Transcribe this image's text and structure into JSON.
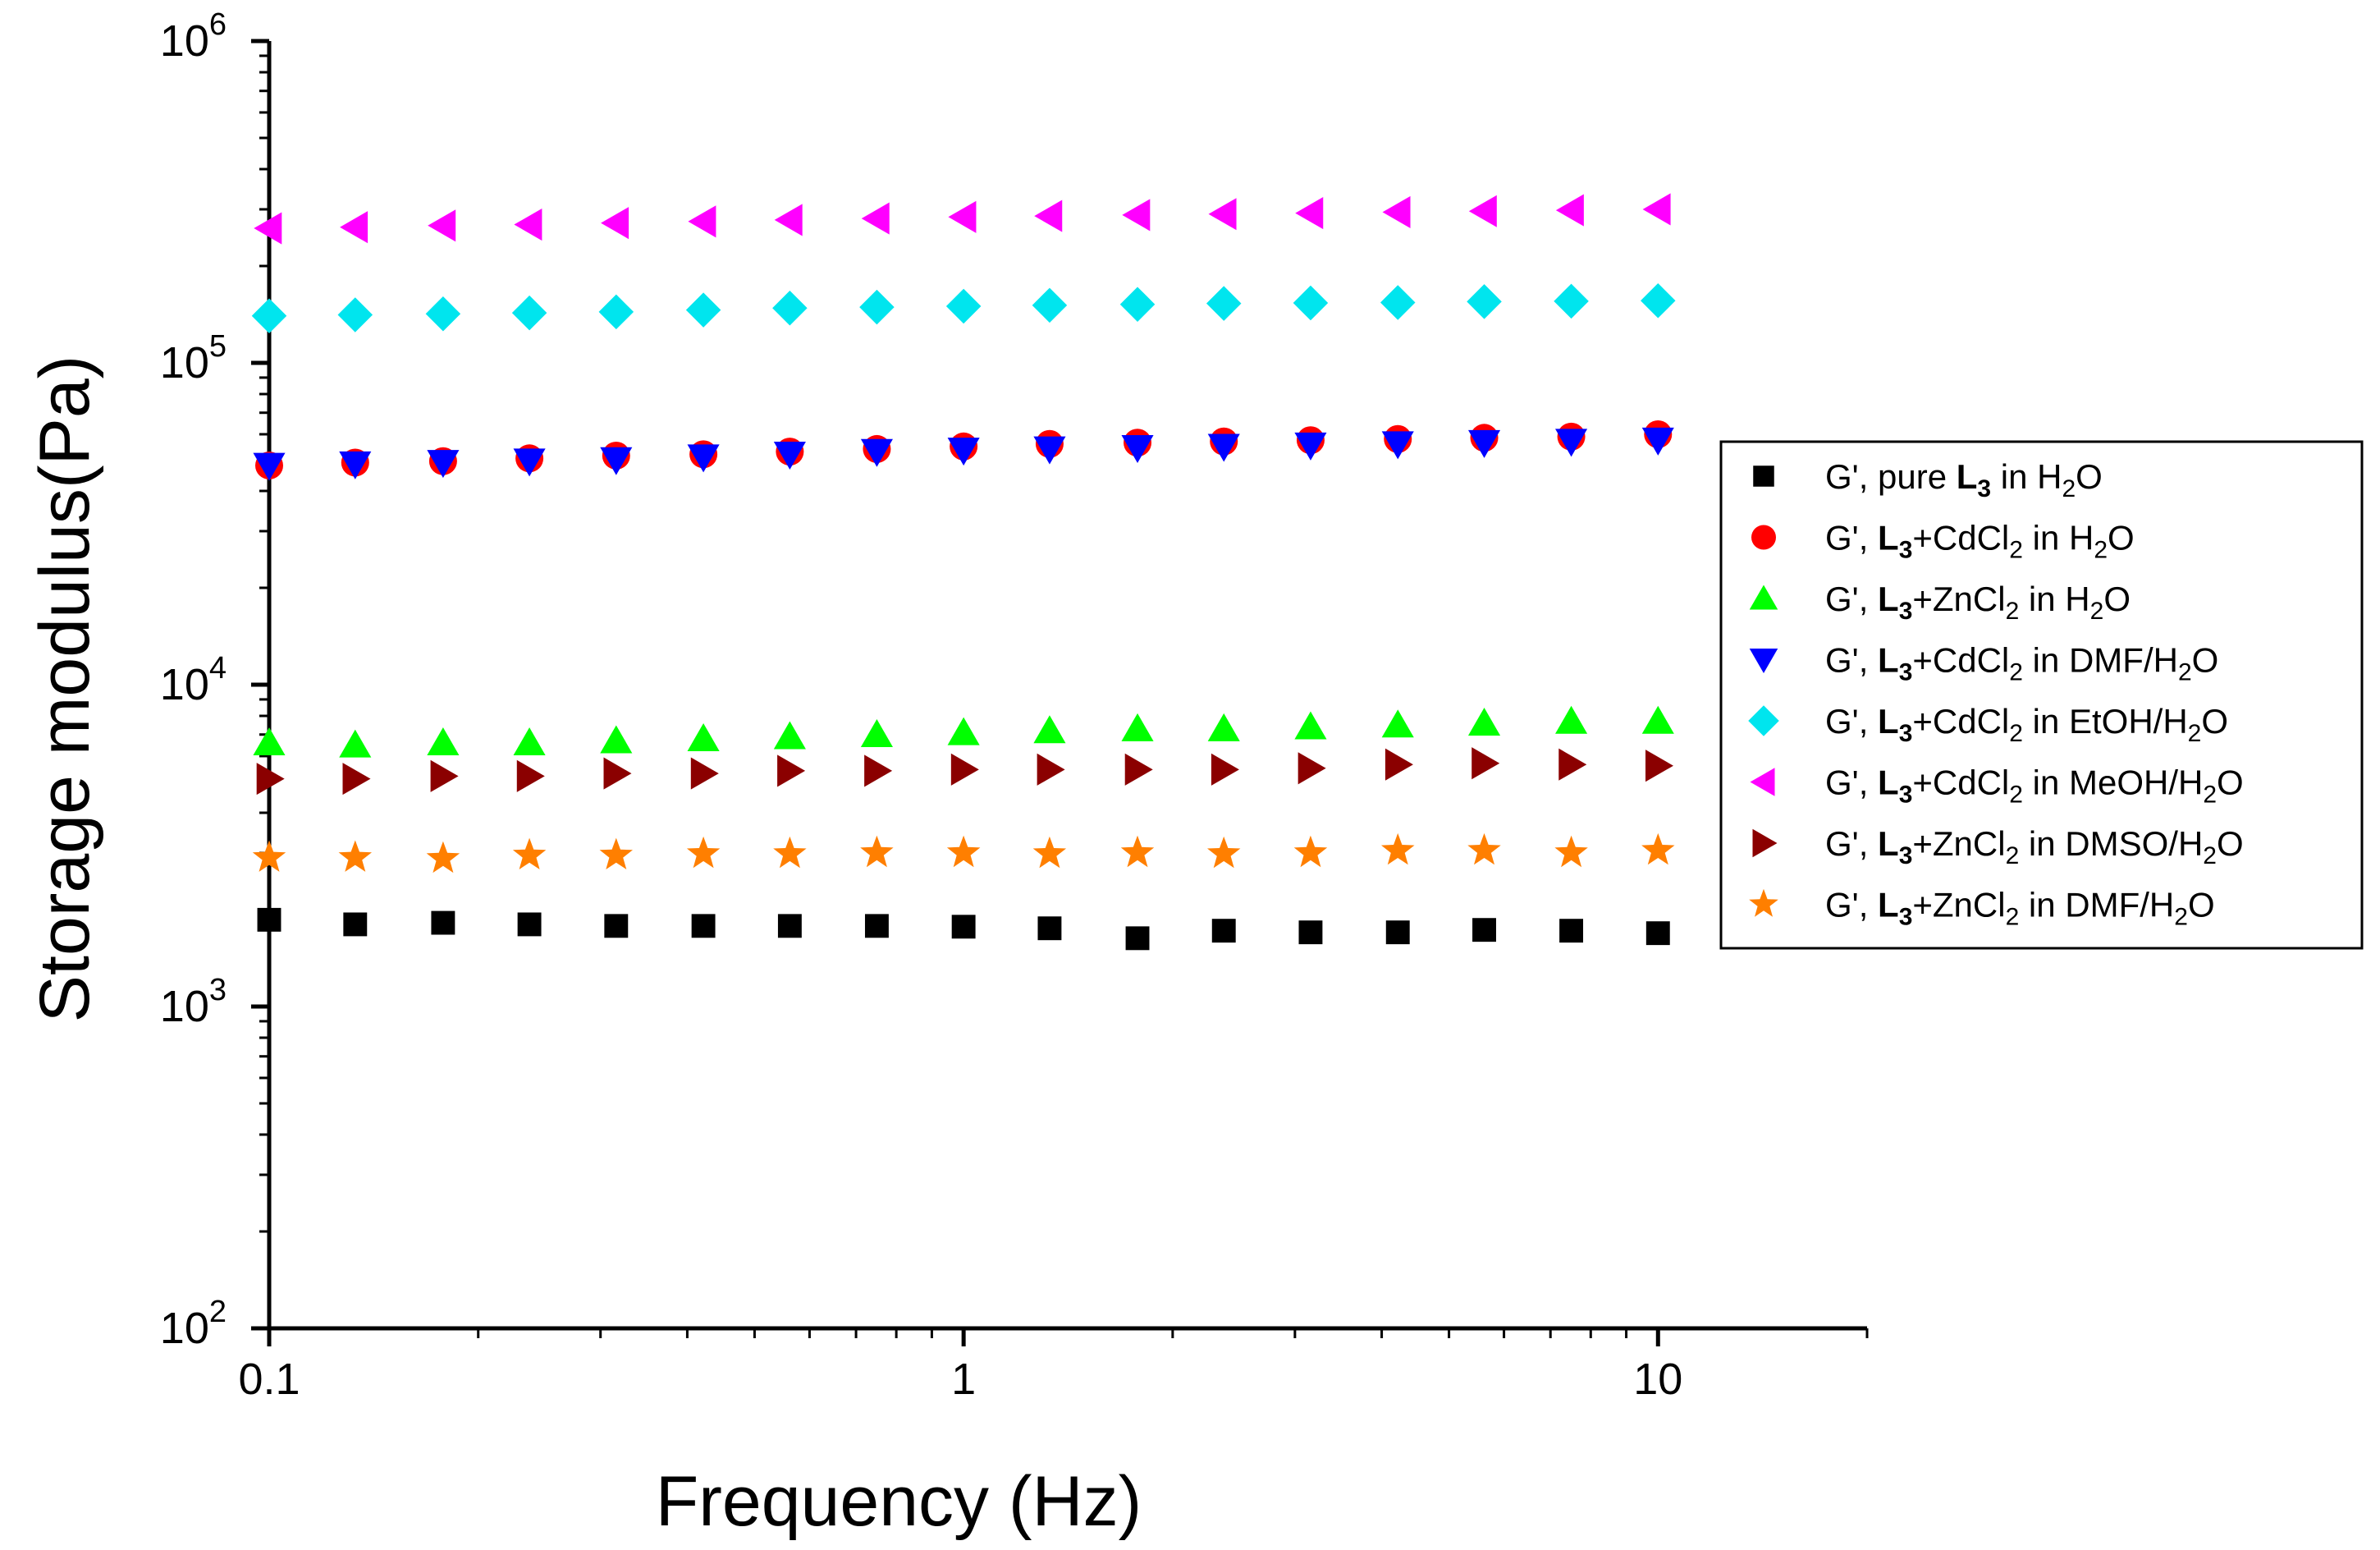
{
  "chart_data": {
    "type": "scatter",
    "title": "",
    "xlabel": "Frequency (Hz)",
    "ylabel": "Storage modulus(Pa)",
    "xscale": "log",
    "yscale": "log",
    "xlim": [
      0.1,
      20
    ],
    "ylim": [
      100,
      1000000
    ],
    "x_ticks": [
      {
        "value": 0.1,
        "label": "0.1"
      },
      {
        "value": 1,
        "label": "1"
      },
      {
        "value": 10,
        "label": "10"
      }
    ],
    "y_ticks": [
      {
        "value": 100,
        "base": "10",
        "exp": "2"
      },
      {
        "value": 1000,
        "base": "10",
        "exp": "3"
      },
      {
        "value": 10000,
        "base": "10",
        "exp": "4"
      },
      {
        "value": 100000,
        "base": "10",
        "exp": "5"
      },
      {
        "value": 1000000,
        "base": "10",
        "exp": "6"
      }
    ],
    "legend_position": "right",
    "x": [
      0.1,
      0.133,
      0.178,
      0.237,
      0.316,
      0.422,
      0.562,
      0.75,
      1.0,
      1.33,
      1.78,
      2.37,
      3.16,
      4.22,
      5.62,
      7.5,
      10.0
    ],
    "series": [
      {
        "name": "G', pure L3 in H2O",
        "label_parts": [
          {
            "t": "G',  pure "
          },
          {
            "t": "L",
            "b": true
          },
          {
            "t": "3",
            "sub": true,
            "b": true
          },
          {
            "t": " in H"
          },
          {
            "t": "2",
            "sub": true
          },
          {
            "t": "O"
          }
        ],
        "marker": "square",
        "color": "#000000",
        "values": [
          1860,
          1800,
          1820,
          1800,
          1780,
          1780,
          1780,
          1780,
          1770,
          1750,
          1630,
          1720,
          1700,
          1700,
          1730,
          1720,
          1690
        ]
      },
      {
        "name": "G', L3+CdCl2 in H2O",
        "label_parts": [
          {
            "t": "G',  "
          },
          {
            "t": "L",
            "b": true
          },
          {
            "t": "3",
            "sub": true,
            "b": true
          },
          {
            "t": "+CdCl"
          },
          {
            "t": "2",
            "sub": true
          },
          {
            "t": " in H"
          },
          {
            "t": "2",
            "sub": true
          },
          {
            "t": "O"
          }
        ],
        "marker": "circle",
        "color": "#ff0000",
        "values": [
          48000,
          49000,
          49500,
          50500,
          51500,
          52000,
          53000,
          54000,
          55000,
          56000,
          56500,
          57000,
          57500,
          58000,
          58500,
          59000,
          60000
        ]
      },
      {
        "name": "G', L3+ZnCl2 in H2O",
        "label_parts": [
          {
            "t": "G',  "
          },
          {
            "t": "L",
            "b": true
          },
          {
            "t": "3",
            "sub": true,
            "b": true
          },
          {
            "t": "+ZnCl"
          },
          {
            "t": "2",
            "sub": true
          },
          {
            "t": " in H"
          },
          {
            "t": "2",
            "sub": true
          },
          {
            "t": "O"
          }
        ],
        "marker": "triangle-up",
        "color": "#00ff00",
        "values": [
          6600,
          6500,
          6600,
          6600,
          6700,
          6800,
          6900,
          7000,
          7100,
          7200,
          7300,
          7300,
          7400,
          7500,
          7600,
          7700,
          7700
        ]
      },
      {
        "name": "G', L3+CdCl2 in DMF/H2O",
        "label_parts": [
          {
            "t": "G',  "
          },
          {
            "t": "L",
            "b": true
          },
          {
            "t": "3",
            "sub": true,
            "b": true
          },
          {
            "t": "+CdCl"
          },
          {
            "t": "2",
            "sub": true
          },
          {
            "t": " in DMF/H"
          },
          {
            "t": "2",
            "sub": true
          },
          {
            "t": "O"
          }
        ],
        "marker": "triangle-down",
        "color": "#0000ff",
        "values": [
          48000,
          48500,
          49000,
          49500,
          50000,
          51000,
          52000,
          53000,
          53500,
          54000,
          54500,
          55000,
          55500,
          56000,
          56500,
          57000,
          57500
        ]
      },
      {
        "name": "G', L3+CdCl2 in EtOH/H2O",
        "label_parts": [
          {
            "t": "G',  "
          },
          {
            "t": "L",
            "b": true
          },
          {
            "t": "3",
            "sub": true,
            "b": true
          },
          {
            "t": "+CdCl"
          },
          {
            "t": "2",
            "sub": true
          },
          {
            "t": " in EtOH/H"
          },
          {
            "t": "2",
            "sub": true
          },
          {
            "t": "O"
          }
        ],
        "marker": "diamond",
        "color": "#00e5ee",
        "values": [
          140000,
          141000,
          142000,
          143000,
          144000,
          146000,
          148000,
          149000,
          150000,
          151000,
          152000,
          153000,
          153500,
          154000,
          155000,
          155500,
          156000
        ]
      },
      {
        "name": "G', L3+CdCl2 in MeOH/H2O",
        "label_parts": [
          {
            "t": "G',  "
          },
          {
            "t": "L",
            "b": true
          },
          {
            "t": "3",
            "sub": true,
            "b": true
          },
          {
            "t": "+CdCl"
          },
          {
            "t": "2",
            "sub": true
          },
          {
            "t": " in MeOH/H"
          },
          {
            "t": "2",
            "sub": true
          },
          {
            "t": "O"
          }
        ],
        "marker": "triangle-left",
        "color": "#ff00ff",
        "values": [
          262000,
          264000,
          267000,
          269000,
          272000,
          275000,
          278000,
          281000,
          284000,
          286000,
          288000,
          290000,
          292000,
          294000,
          296000,
          298000,
          300000
        ]
      },
      {
        "name": "G', L3+ZnCl2 in DMSO/H2O",
        "label_parts": [
          {
            "t": "G',  "
          },
          {
            "t": "L",
            "b": true
          },
          {
            "t": "3",
            "sub": true,
            "b": true
          },
          {
            "t": "+ZnCl"
          },
          {
            "t": "2",
            "sub": true
          },
          {
            "t": " in DMSO/H"
          },
          {
            "t": "2",
            "sub": true
          },
          {
            "t": "O"
          }
        ],
        "marker": "triangle-right",
        "color": "#8b0000",
        "values": [
          5100,
          5100,
          5200,
          5200,
          5300,
          5300,
          5400,
          5400,
          5450,
          5450,
          5450,
          5450,
          5500,
          5650,
          5700,
          5650,
          5600
        ]
      },
      {
        "name": "G', L3+ZnCl2 in DMF/H2O",
        "label_parts": [
          {
            "t": "G',  "
          },
          {
            "t": "L",
            "b": true
          },
          {
            "t": "3",
            "sub": true,
            "b": true
          },
          {
            "t": "+ZnCl"
          },
          {
            "t": "2",
            "sub": true
          },
          {
            "t": " in DMF/H"
          },
          {
            "t": "2",
            "sub": true
          },
          {
            "t": "O"
          }
        ],
        "marker": "star",
        "color": "#ff7f00",
        "values": [
          2900,
          2900,
          2880,
          2950,
          2950,
          2980,
          2980,
          3000,
          3000,
          2980,
          3000,
          2980,
          3000,
          3050,
          3050,
          3000,
          3050
        ]
      }
    ]
  }
}
